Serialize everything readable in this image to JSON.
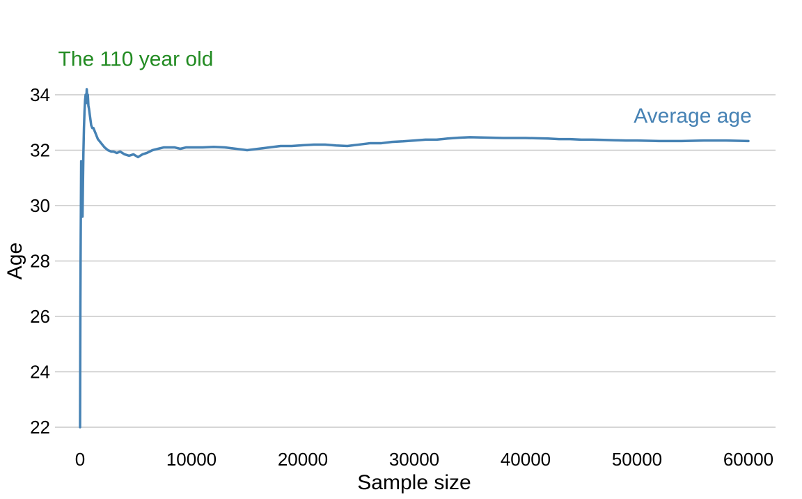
{
  "chart_data": {
    "type": "line",
    "xlabel": "Sample size",
    "ylabel": "Age",
    "xlim": [
      0,
      60000
    ],
    "ylim": [
      22,
      34
    ],
    "x_ticks": [
      0,
      10000,
      20000,
      30000,
      40000,
      50000,
      60000
    ],
    "y_ticks": [
      22,
      24,
      26,
      28,
      30,
      32,
      34
    ],
    "x_tick_labels": [
      "0",
      "10000",
      "20000",
      "30000",
      "40000",
      "50000",
      "60000"
    ],
    "y_tick_labels": [
      "22",
      "24",
      "26",
      "28",
      "30",
      "32",
      "34"
    ],
    "grid": "horizontal",
    "series": [
      {
        "color": "#4682b4",
        "points": [
          [
            0,
            22.0
          ],
          [
            30,
            26.5
          ],
          [
            60,
            29.0
          ],
          [
            100,
            31.6
          ],
          [
            140,
            30.2
          ],
          [
            180,
            31.5
          ],
          [
            220,
            29.6
          ],
          [
            260,
            30.8
          ],
          [
            300,
            31.9
          ],
          [
            350,
            32.8
          ],
          [
            400,
            33.4
          ],
          [
            450,
            33.8
          ],
          [
            500,
            34.0
          ],
          [
            550,
            33.7
          ],
          [
            600,
            34.2
          ],
          [
            650,
            33.9
          ],
          [
            700,
            34.0
          ],
          [
            750,
            33.6
          ],
          [
            800,
            33.5
          ],
          [
            900,
            33.2
          ],
          [
            1000,
            32.9
          ],
          [
            1100,
            32.8
          ],
          [
            1200,
            32.8
          ],
          [
            1400,
            32.6
          ],
          [
            1600,
            32.4
          ],
          [
            1800,
            32.3
          ],
          [
            2000,
            32.2
          ],
          [
            2200,
            32.1
          ],
          [
            2500,
            32.0
          ],
          [
            2800,
            31.95
          ],
          [
            3000,
            31.95
          ],
          [
            3300,
            31.9
          ],
          [
            3600,
            31.95
          ],
          [
            4000,
            31.85
          ],
          [
            4400,
            31.8
          ],
          [
            4800,
            31.85
          ],
          [
            5200,
            31.75
          ],
          [
            5600,
            31.85
          ],
          [
            6000,
            31.9
          ],
          [
            6500,
            32.0
          ],
          [
            7000,
            32.05
          ],
          [
            7500,
            32.1
          ],
          [
            8000,
            32.1
          ],
          [
            8500,
            32.1
          ],
          [
            9000,
            32.05
          ],
          [
            9500,
            32.1
          ],
          [
            10000,
            32.1
          ],
          [
            11000,
            32.1
          ],
          [
            12000,
            32.12
          ],
          [
            13000,
            32.1
          ],
          [
            14000,
            32.05
          ],
          [
            15000,
            32.0
          ],
          [
            16000,
            32.05
          ],
          [
            17000,
            32.1
          ],
          [
            18000,
            32.15
          ],
          [
            19000,
            32.15
          ],
          [
            20000,
            32.18
          ],
          [
            21000,
            32.2
          ],
          [
            22000,
            32.2
          ],
          [
            23000,
            32.17
          ],
          [
            24000,
            32.15
          ],
          [
            25000,
            32.2
          ],
          [
            26000,
            32.25
          ],
          [
            27000,
            32.25
          ],
          [
            28000,
            32.3
          ],
          [
            29000,
            32.32
          ],
          [
            30000,
            32.35
          ],
          [
            31000,
            32.38
          ],
          [
            32000,
            32.38
          ],
          [
            33000,
            32.42
          ],
          [
            34000,
            32.45
          ],
          [
            35000,
            32.47
          ],
          [
            36000,
            32.46
          ],
          [
            37000,
            32.45
          ],
          [
            38000,
            32.44
          ],
          [
            39000,
            32.44
          ],
          [
            40000,
            32.44
          ],
          [
            41000,
            32.43
          ],
          [
            42000,
            32.42
          ],
          [
            43000,
            32.4
          ],
          [
            44000,
            32.4
          ],
          [
            45000,
            32.38
          ],
          [
            46000,
            32.38
          ],
          [
            47000,
            32.37
          ],
          [
            48000,
            32.36
          ],
          [
            49000,
            32.35
          ],
          [
            50000,
            32.35
          ],
          [
            51000,
            32.34
          ],
          [
            52000,
            32.33
          ],
          [
            53000,
            32.33
          ],
          [
            54000,
            32.33
          ],
          [
            55000,
            32.34
          ],
          [
            56000,
            32.35
          ],
          [
            57000,
            32.35
          ],
          [
            58000,
            32.35
          ],
          [
            59000,
            32.34
          ],
          [
            60000,
            32.33
          ]
        ]
      }
    ],
    "annotations": [
      {
        "text": "The 110 year old",
        "color": "#228b22",
        "x": 5000,
        "y": 35.05
      },
      {
        "text": "Average age",
        "color": "#4682b4",
        "x": 55000,
        "y": 33.0
      }
    ]
  }
}
